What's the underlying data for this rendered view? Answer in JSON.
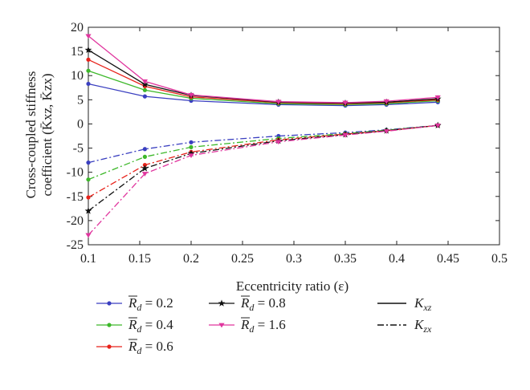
{
  "chart_data": {
    "type": "line",
    "xlabel": "Eccentricity ratio (ε)",
    "ylabel_line1": "Cross-coupled stiffness",
    "ylabel_line2": "coefficient (K̄xz, K̄zx)",
    "xlim": [
      0.1,
      0.5
    ],
    "ylim": [
      -25,
      20
    ],
    "x_ticks": [
      "0.1",
      "0.15",
      "0.2",
      "0.25",
      "0.3",
      "0.35",
      "0.4",
      "0.45",
      "0.5"
    ],
    "y_ticks": [
      "20",
      "15",
      "10",
      "5",
      "0",
      "-5",
      "-10",
      "-15",
      "-20",
      "-25"
    ],
    "grid": false,
    "legend_position": "below",
    "x": [
      0.1,
      0.155,
      0.2,
      0.285,
      0.35,
      0.39,
      0.44
    ],
    "series": [
      {
        "rd": "0.2",
        "color": "#3a3fc0",
        "marker": "dot",
        "kxz": [
          8.3,
          5.7,
          4.8,
          4.0,
          3.8,
          4.0,
          4.5
        ],
        "kzx": [
          -8.0,
          -5.2,
          -3.8,
          -2.5,
          -1.8,
          -1.2,
          -0.3
        ]
      },
      {
        "rd": "0.4",
        "color": "#3db82a",
        "marker": "dot",
        "kxz": [
          11.0,
          7.0,
          5.3,
          4.2,
          4.0,
          4.2,
          4.8
        ],
        "kzx": [
          -11.5,
          -6.8,
          -4.8,
          -3.0,
          -2.0,
          -1.3,
          -0.3
        ]
      },
      {
        "rd": "0.6",
        "color": "#e8221a",
        "marker": "dot",
        "kxz": [
          13.3,
          7.8,
          5.6,
          4.4,
          4.2,
          4.4,
          5.0
        ],
        "kzx": [
          -15.2,
          -8.5,
          -5.8,
          -3.3,
          -2.1,
          -1.4,
          -0.3
        ]
      },
      {
        "rd": "0.8",
        "color": "#111111",
        "marker": "star",
        "kxz": [
          15.3,
          8.2,
          5.9,
          4.5,
          4.3,
          4.5,
          5.2
        ],
        "kzx": [
          -18.0,
          -9.2,
          -6.1,
          -3.5,
          -2.2,
          -1.4,
          -0.3
        ]
      },
      {
        "rd": "1.6",
        "color": "#e0359e",
        "marker": "triangle",
        "kxz": [
          18.2,
          8.8,
          6.0,
          4.6,
          4.4,
          4.7,
          5.5
        ],
        "kzx": [
          -23.0,
          -10.3,
          -6.5,
          -3.7,
          -2.3,
          -1.5,
          -0.3
        ]
      }
    ],
    "legend": {
      "rd_symbol": "R",
      "rd_subscript": "d",
      "equals": " = ",
      "kxz_symbol": "K",
      "kxz_subscript": "xz",
      "kzx_symbol": "K",
      "kzx_subscript": "zx"
    }
  }
}
